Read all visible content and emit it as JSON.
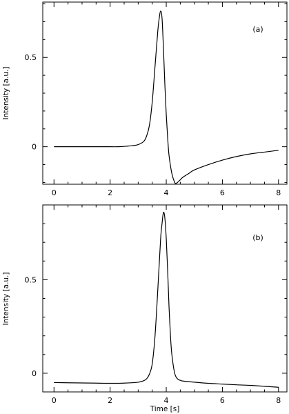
{
  "chart_data": [
    {
      "type": "line",
      "panel_label": "(a)",
      "xlabel": "",
      "ylabel": "Intensity [a.u.]",
      "xlim": [
        -0.4,
        8.3
      ],
      "ylim": [
        -0.21,
        0.81
      ],
      "xticks": [
        0,
        2,
        4,
        6,
        8
      ],
      "xtick_labels": [
        "0",
        "2",
        "4",
        "6",
        "8"
      ],
      "yticks": [
        0,
        0.5
      ],
      "ytick_labels": [
        "0",
        "0.5"
      ],
      "grid": false,
      "series": [
        {
          "x": [
            0,
            0.5,
            1,
            1.5,
            2,
            2.3,
            2.6,
            2.8,
            3.0,
            3.2,
            3.3,
            3.4,
            3.5,
            3.6,
            3.7,
            3.75,
            3.8,
            3.85,
            3.9,
            3.95,
            4.0,
            4.05,
            4.1,
            4.2,
            4.3,
            4.35,
            4.4,
            4.5,
            4.6,
            4.8,
            5.0,
            5.5,
            6.0,
            6.5,
            7.0,
            7.5,
            8.0
          ],
          "y": [
            0.0,
            0.0,
            0.0,
            0.0,
            0.0,
            0.0,
            0.003,
            0.006,
            0.012,
            0.03,
            0.06,
            0.12,
            0.25,
            0.45,
            0.65,
            0.72,
            0.76,
            0.72,
            0.55,
            0.35,
            0.18,
            0.05,
            -0.05,
            -0.15,
            -0.2,
            -0.205,
            -0.2,
            -0.185,
            -0.17,
            -0.15,
            -0.13,
            -0.1,
            -0.075,
            -0.055,
            -0.04,
            -0.03,
            -0.02
          ]
        }
      ]
    },
    {
      "type": "line",
      "panel_label": "(b)",
      "xlabel": "Time [s]",
      "ylabel": "Intensity [a.u.]",
      "xlim": [
        -0.4,
        8.3
      ],
      "ylim": [
        -0.1,
        0.9
      ],
      "xticks": [
        0,
        2,
        4,
        6,
        8
      ],
      "xtick_labels": [
        "0",
        "2",
        "4",
        "6",
        "8"
      ],
      "yticks": [
        0,
        0.5
      ],
      "ytick_labels": [
        "0",
        "0.5"
      ],
      "grid": false,
      "series": [
        {
          "x": [
            0,
            0.5,
            1,
            1.5,
            2,
            2.5,
            3.0,
            3.2,
            3.3,
            3.4,
            3.5,
            3.6,
            3.7,
            3.8,
            3.85,
            3.9,
            3.95,
            4.0,
            4.05,
            4.1,
            4.15,
            4.2,
            4.3,
            4.4,
            4.5,
            4.6,
            5.0,
            5.5,
            6.0,
            6.5,
            7.0,
            7.5,
            8.0
          ],
          "y": [
            -0.05,
            -0.051,
            -0.052,
            -0.053,
            -0.054,
            -0.053,
            -0.048,
            -0.04,
            -0.03,
            -0.005,
            0.05,
            0.2,
            0.45,
            0.72,
            0.8,
            0.86,
            0.83,
            0.72,
            0.55,
            0.35,
            0.2,
            0.1,
            0.0,
            -0.03,
            -0.038,
            -0.042,
            -0.048,
            -0.054,
            -0.058,
            -0.062,
            -0.065,
            -0.07,
            -0.075
          ]
        }
      ]
    }
  ]
}
